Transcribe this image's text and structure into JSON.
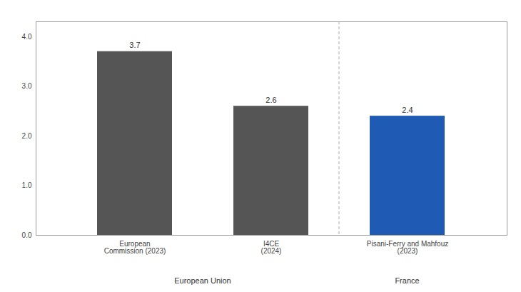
{
  "chart_data": {
    "type": "bar",
    "categories": [
      "European\nCommission (2023)",
      "I4CE\n(2024)",
      "Pisani-Ferry and Mahfouz\n(2023)"
    ],
    "groups": [
      "European Union",
      "European Union",
      "France"
    ],
    "values": [
      3.7,
      2.6,
      2.4
    ],
    "colors": [
      "#555555",
      "#555555",
      "#1f5bb5"
    ],
    "ylim": [
      0,
      4.3
    ],
    "yticks": [
      0,
      1,
      2,
      3,
      4
    ],
    "data_labels": true,
    "grid": false
  }
}
